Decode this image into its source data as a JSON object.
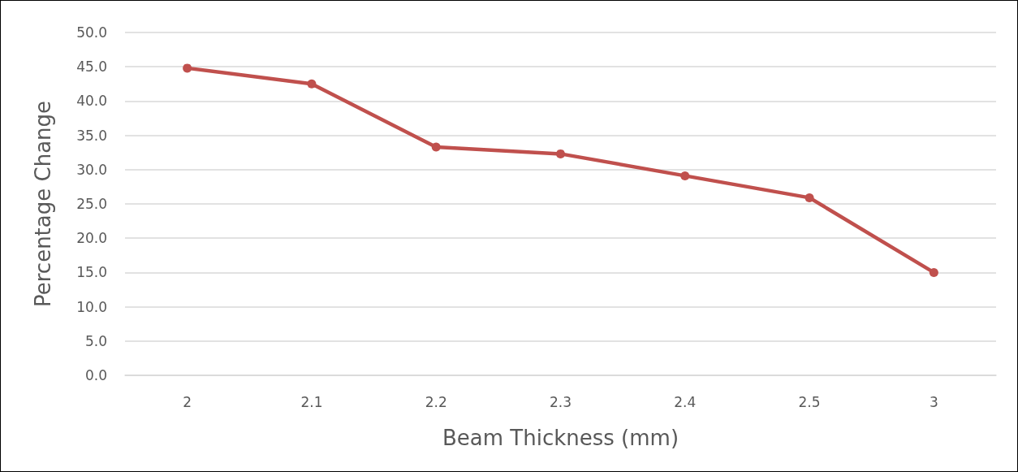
{
  "chart_data": {
    "type": "line",
    "xlabel": "Beam Thickness (mm)",
    "ylabel": "Percentage Change",
    "categories": [
      "2",
      "2.1",
      "2.2",
      "2.3",
      "2.4",
      "2.5",
      "3"
    ],
    "series": [
      {
        "color": "#c0504d",
        "values": [
          44.8,
          42.5,
          33.3,
          32.3,
          29.1,
          25.9,
          15.0
        ]
      }
    ],
    "ylim": [
      0,
      50
    ],
    "yticks": [
      {
        "value": 0,
        "label": "0.0"
      },
      {
        "value": 5,
        "label": "5.0"
      },
      {
        "value": 10,
        "label": "10.0"
      },
      {
        "value": 15,
        "label": "15.0"
      },
      {
        "value": 20,
        "label": "20.0"
      },
      {
        "value": 25,
        "label": "25.0"
      },
      {
        "value": 30,
        "label": "30.0"
      },
      {
        "value": 35,
        "label": "35.0"
      },
      {
        "value": 40,
        "label": "40.0"
      },
      {
        "value": 45,
        "label": "45.0"
      },
      {
        "value": 50,
        "label": "50.0"
      }
    ],
    "grid": "y",
    "marker": "circle",
    "line_style": "solid"
  }
}
